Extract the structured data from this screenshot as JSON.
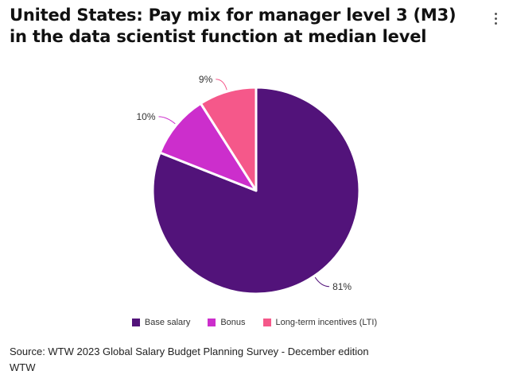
{
  "title": "United States: Pay mix for manager level 3 (M3) in the data scientist function at median level",
  "menu": {
    "icon": "more-vertical-icon"
  },
  "chart_data": {
    "type": "pie",
    "title": "United States: Pay mix for manager level 3 (M3) in the data scientist function at median level",
    "start_angle_deg": 0,
    "direction": "clockwise",
    "slices": [
      {
        "name": "Base salary",
        "value": 81,
        "label": "81%",
        "color": "#52137a"
      },
      {
        "name": "Bonus",
        "value": 10,
        "label": "10%",
        "color": "#cc2ecc"
      },
      {
        "name": "Long-term incentives (LTI)",
        "value": 9,
        "label": "9%",
        "color": "#f5588a"
      }
    ],
    "legend_position": "bottom"
  },
  "source": {
    "line1": "Source: WTW 2023 Global Salary Budget Planning Survey - December edition",
    "line2": "WTW"
  }
}
